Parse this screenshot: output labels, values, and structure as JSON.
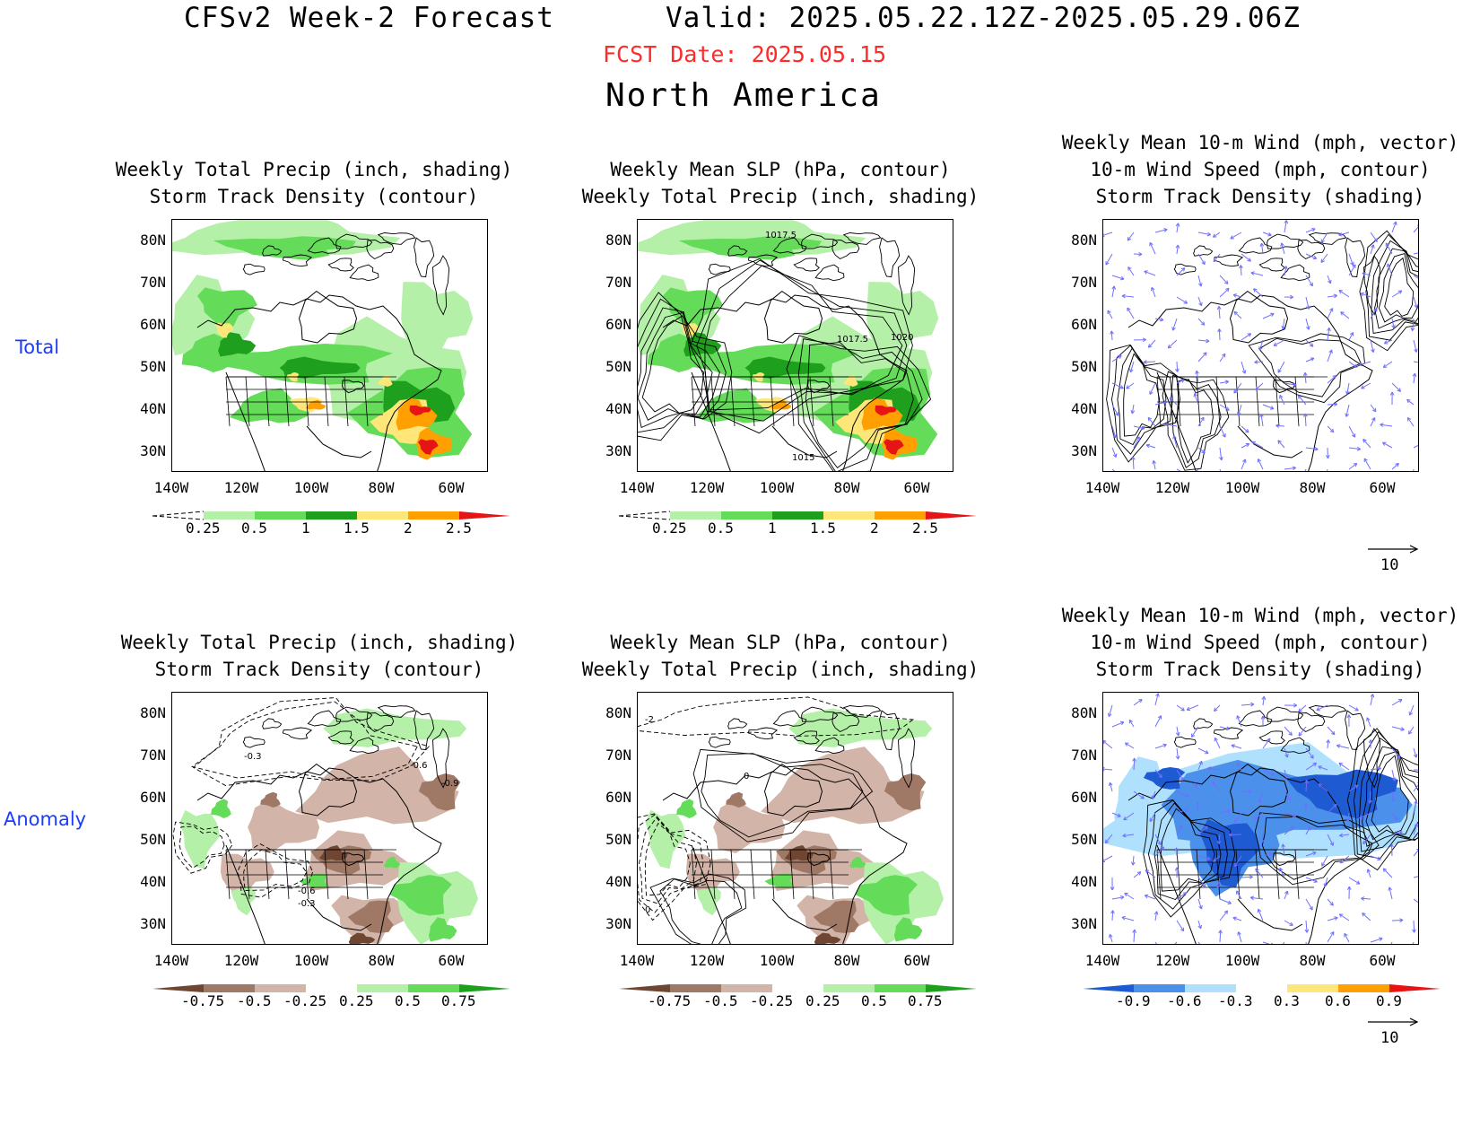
{
  "header": {
    "title": "CFSv2 Week-2 Forecast",
    "valid": "Valid: 2025.05.22.12Z-2025.05.29.06Z",
    "fcst_date": "FCST Date: 2025.05.15",
    "region": "North America"
  },
  "row_labels": [
    "Total",
    "Anomaly"
  ],
  "panels": [
    {
      "id": "p1",
      "title1": "Weekly Total Precip (inch, shading)",
      "title2": "Storm Track Density (contour)",
      "title0": ""
    },
    {
      "id": "p2",
      "title1": "Weekly Mean SLP (hPa, contour)",
      "title2": "Weekly Total Precip (inch, shading)",
      "title0": ""
    },
    {
      "id": "p3",
      "title0": "Weekly Mean 10-m Wind (mph, vector)",
      "title1": "10-m Wind Speed (mph, contour)",
      "title2": "Storm Track Density (shading)"
    },
    {
      "id": "p4",
      "title1": "Weekly Total Precip (inch, shading)",
      "title2": "Storm Track Density (contour)",
      "title0": ""
    },
    {
      "id": "p5",
      "title1": "Weekly Mean SLP (hPa, contour)",
      "title2": "Weekly Total Precip (inch, shading)",
      "title0": ""
    },
    {
      "id": "p6",
      "title0": "Weekly Mean 10-m Wind (mph, vector)",
      "title1": "10-m Wind Speed (mph, contour)",
      "title2": "Storm Track Density (shading)"
    }
  ],
  "lat_ticks": [
    "80N",
    "70N",
    "60N",
    "50N",
    "40N",
    "30N"
  ],
  "lon_ticks": [
    "140W",
    "120W",
    "100W",
    "80W",
    "60W"
  ],
  "contour_labels": {
    "p2": [
      "1017.5",
      "1017.5",
      "1020",
      "1015"
    ],
    "p4": [
      "-0.3",
      "-0.6",
      "-0.9",
      "-0.6",
      "-0.3"
    ],
    "p5": [
      "-2",
      "0",
      "0"
    ]
  },
  "colorbars": {
    "total_precip": {
      "labels": [
        "0.25",
        "0.5",
        "1",
        "1.5",
        "2",
        "2.5"
      ],
      "colors": [
        "#ffffff",
        "#b4f0a8",
        "#64dc5a",
        "#1ea01e",
        "#ffe678",
        "#ffa000",
        "#e61414"
      ]
    },
    "anom_precip": {
      "labels": [
        "-0.75",
        "-0.5",
        "-0.25",
        "0.25",
        "0.5",
        "0.75"
      ],
      "colors": [
        "#6e4632",
        "#a07866",
        "#d2b4a8",
        "#ffffff",
        "#b4f0a8",
        "#64dc5a",
        "#1ea01e"
      ]
    },
    "anom_storm": {
      "labels": [
        "-0.9",
        "-0.6",
        "-0.3",
        "0.3",
        "0.6",
        "0.9"
      ],
      "colors": [
        "#1e5ad2",
        "#4b91eb",
        "#afe1ff",
        "#ffffff",
        "#ffe678",
        "#ffa000",
        "#e61414"
      ]
    }
  },
  "vector_ref": "10",
  "colors": {
    "title_red": "#ff2a2a",
    "row_label_blue": "#1a3cff",
    "vector": "#6f6fff"
  }
}
